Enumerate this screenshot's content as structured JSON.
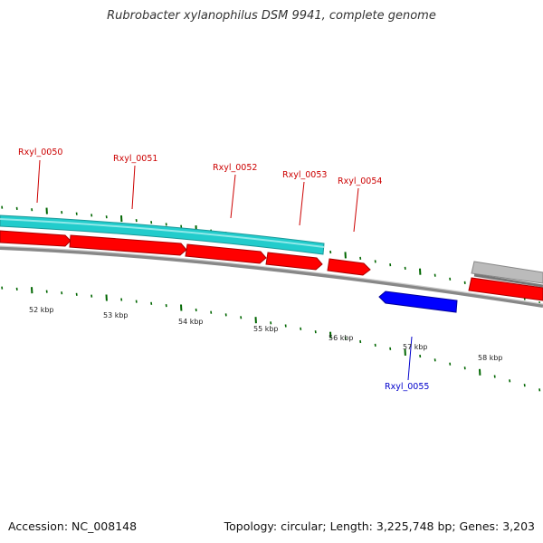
{
  "title": "Rubrobacter xylanophilus DSM 9941, complete genome",
  "footer": {
    "accession": "Accession: NC_008148",
    "summary": "Topology: circular; Length: 3,225,748 bp; Genes: 3,203"
  },
  "colors": {
    "forward_gene": "#ff0000",
    "reverse_gene": "#0000ff",
    "label_forward": "#cc0000",
    "label_reverse": "#0000cc",
    "track_cyan": "#22cccc",
    "track_gray": "#bbbbbb",
    "backbone": "#808080",
    "tick": "#006600"
  },
  "genes": [
    {
      "id": "Rxyl_0050",
      "strand": "+"
    },
    {
      "id": "Rxyl_0051",
      "strand": "+"
    },
    {
      "id": "Rxyl_0052",
      "strand": "+"
    },
    {
      "id": "Rxyl_0053",
      "strand": "+"
    },
    {
      "id": "Rxyl_0054",
      "strand": "+"
    },
    {
      "id": "Rxyl_0055",
      "strand": "-"
    }
  ],
  "scale_labels": [
    "52 kbp",
    "53 kbp",
    "54 kbp",
    "55 kbp",
    "56 kbp",
    "57 kbp",
    "58 kbp"
  ]
}
